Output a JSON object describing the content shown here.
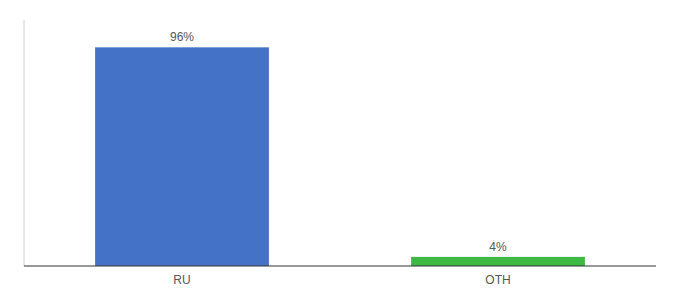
{
  "chart_data": {
    "type": "bar",
    "categories": [
      "RU",
      "OTH"
    ],
    "values": [
      96,
      4
    ],
    "value_labels": [
      "96%",
      "4%"
    ],
    "colors": [
      "#4472C4",
      "#3CB843"
    ],
    "ylim": [
      0,
      108
    ],
    "tick_labels": "x",
    "data_labels": true,
    "grid": false
  }
}
